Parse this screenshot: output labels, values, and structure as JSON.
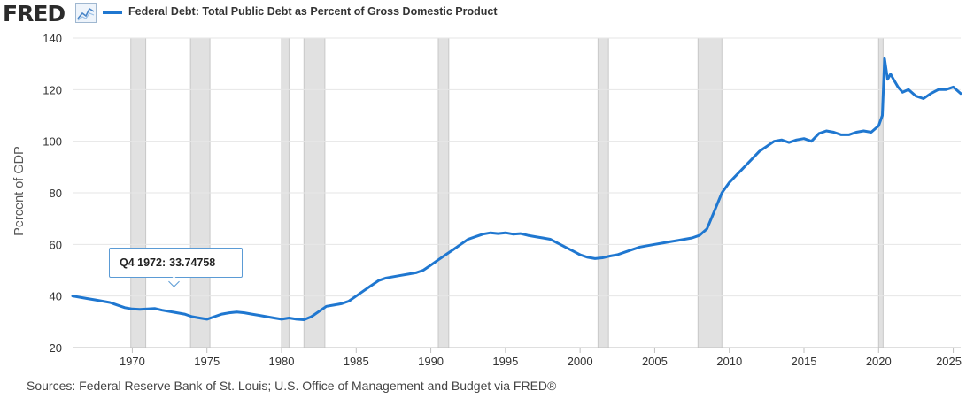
{
  "header": {
    "logo_text": "FRED",
    "logo_icon": "line-chart-icon",
    "legend_label": "Federal Debt: Total Public Debt as Percent of Gross Domestic Product",
    "series_color": "#1f77d0"
  },
  "tooltip": {
    "label": "Q4 1972:",
    "value": "33.74758"
  },
  "source_note": "Sources: Federal Reserve Bank of St. Louis; U.S. Office of Management and Budget via FRED®",
  "chart_data": {
    "type": "line",
    "title": "Federal Debt: Total Public Debt as Percent of Gross Domestic Product",
    "xlabel": "",
    "ylabel": "Percent of GDP",
    "xlim": [
      1966.0,
      2025.5
    ],
    "ylim": [
      20,
      140
    ],
    "yticks": [
      20,
      40,
      60,
      80,
      100,
      120,
      140
    ],
    "xticks": [
      1970,
      1975,
      1980,
      1985,
      1990,
      1995,
      2000,
      2005,
      2010,
      2015,
      2020,
      2025
    ],
    "grid": true,
    "legend": "top-left",
    "recessions": [
      [
        1969.9,
        1970.9
      ],
      [
        1973.9,
        1975.2
      ],
      [
        1980.0,
        1980.5
      ],
      [
        1981.5,
        1982.9
      ],
      [
        1990.5,
        1991.2
      ],
      [
        2001.2,
        2001.9
      ],
      [
        2007.9,
        2009.5
      ],
      [
        2020.0,
        2020.3
      ]
    ],
    "series": [
      {
        "name": "Federal Debt: Total Public Debt as Percent of Gross Domestic Product",
        "x": [
          1966.0,
          1966.5,
          1967.0,
          1967.5,
          1968.0,
          1968.5,
          1969.0,
          1969.5,
          1970.0,
          1970.5,
          1971.0,
          1971.5,
          1972.0,
          1972.5,
          1972.75,
          1973.5,
          1974.0,
          1974.5,
          1975.0,
          1975.5,
          1976.0,
          1976.5,
          1977.0,
          1977.5,
          1978.0,
          1978.5,
          1979.0,
          1979.5,
          1980.0,
          1980.5,
          1981.0,
          1981.5,
          1982.0,
          1982.5,
          1983.0,
          1983.5,
          1984.0,
          1984.5,
          1985.0,
          1985.5,
          1986.0,
          1986.5,
          1987.0,
          1987.5,
          1988.0,
          1988.5,
          1989.0,
          1989.5,
          1990.0,
          1990.5,
          1991.0,
          1991.5,
          1992.0,
          1992.5,
          1993.0,
          1993.5,
          1994.0,
          1994.5,
          1995.0,
          1995.5,
          1996.0,
          1996.5,
          1997.0,
          1997.5,
          1998.0,
          1998.5,
          1999.0,
          1999.5,
          2000.0,
          2000.5,
          2001.0,
          2001.5,
          2002.0,
          2002.5,
          2003.0,
          2003.5,
          2004.0,
          2004.5,
          2005.0,
          2005.5,
          2006.0,
          2006.5,
          2007.0,
          2007.5,
          2008.0,
          2008.5,
          2009.0,
          2009.5,
          2010.0,
          2010.5,
          2011.0,
          2011.5,
          2012.0,
          2012.5,
          2013.0,
          2013.5,
          2014.0,
          2014.5,
          2015.0,
          2015.5,
          2016.0,
          2016.5,
          2017.0,
          2017.5,
          2018.0,
          2018.5,
          2019.0,
          2019.5,
          2020.0,
          2020.25,
          2020.4,
          2020.6,
          2020.8,
          2021.0,
          2021.3,
          2021.6,
          2022.0,
          2022.5,
          2023.0,
          2023.5,
          2024.0,
          2024.5,
          2025.0,
          2025.5
        ],
        "values": [
          40.0,
          39.5,
          39.0,
          38.5,
          38.0,
          37.5,
          36.5,
          35.5,
          35.0,
          34.8,
          35.0,
          35.2,
          34.5,
          34.0,
          33.75,
          33.0,
          32.0,
          31.5,
          31.0,
          32.0,
          33.0,
          33.5,
          33.8,
          33.5,
          33.0,
          32.5,
          32.0,
          31.5,
          31.0,
          31.5,
          31.0,
          30.8,
          32.0,
          34.0,
          36.0,
          36.5,
          37.0,
          38.0,
          40.0,
          42.0,
          44.0,
          46.0,
          47.0,
          47.5,
          48.0,
          48.5,
          49.0,
          50.0,
          52.0,
          54.0,
          56.0,
          58.0,
          60.0,
          62.0,
          63.0,
          64.0,
          64.5,
          64.2,
          64.5,
          64.0,
          64.2,
          63.5,
          63.0,
          62.5,
          62.0,
          60.5,
          59.0,
          57.5,
          56.0,
          55.0,
          54.5,
          54.8,
          55.5,
          56.0,
          57.0,
          58.0,
          59.0,
          59.5,
          60.0,
          60.5,
          61.0,
          61.5,
          62.0,
          62.5,
          63.5,
          66.0,
          73.0,
          80.0,
          84.0,
          87.0,
          90.0,
          93.0,
          96.0,
          98.0,
          100.0,
          100.5,
          99.5,
          100.5,
          101.0,
          100.0,
          103.0,
          104.0,
          103.5,
          102.5,
          102.5,
          103.5,
          104.0,
          103.5,
          106.0,
          110.0,
          132.0,
          124.0,
          126.0,
          124.0,
          121.0,
          119.0,
          120.0,
          117.5,
          116.5,
          118.5,
          120.0,
          120.0,
          121.0,
          118.5
        ]
      }
    ]
  }
}
